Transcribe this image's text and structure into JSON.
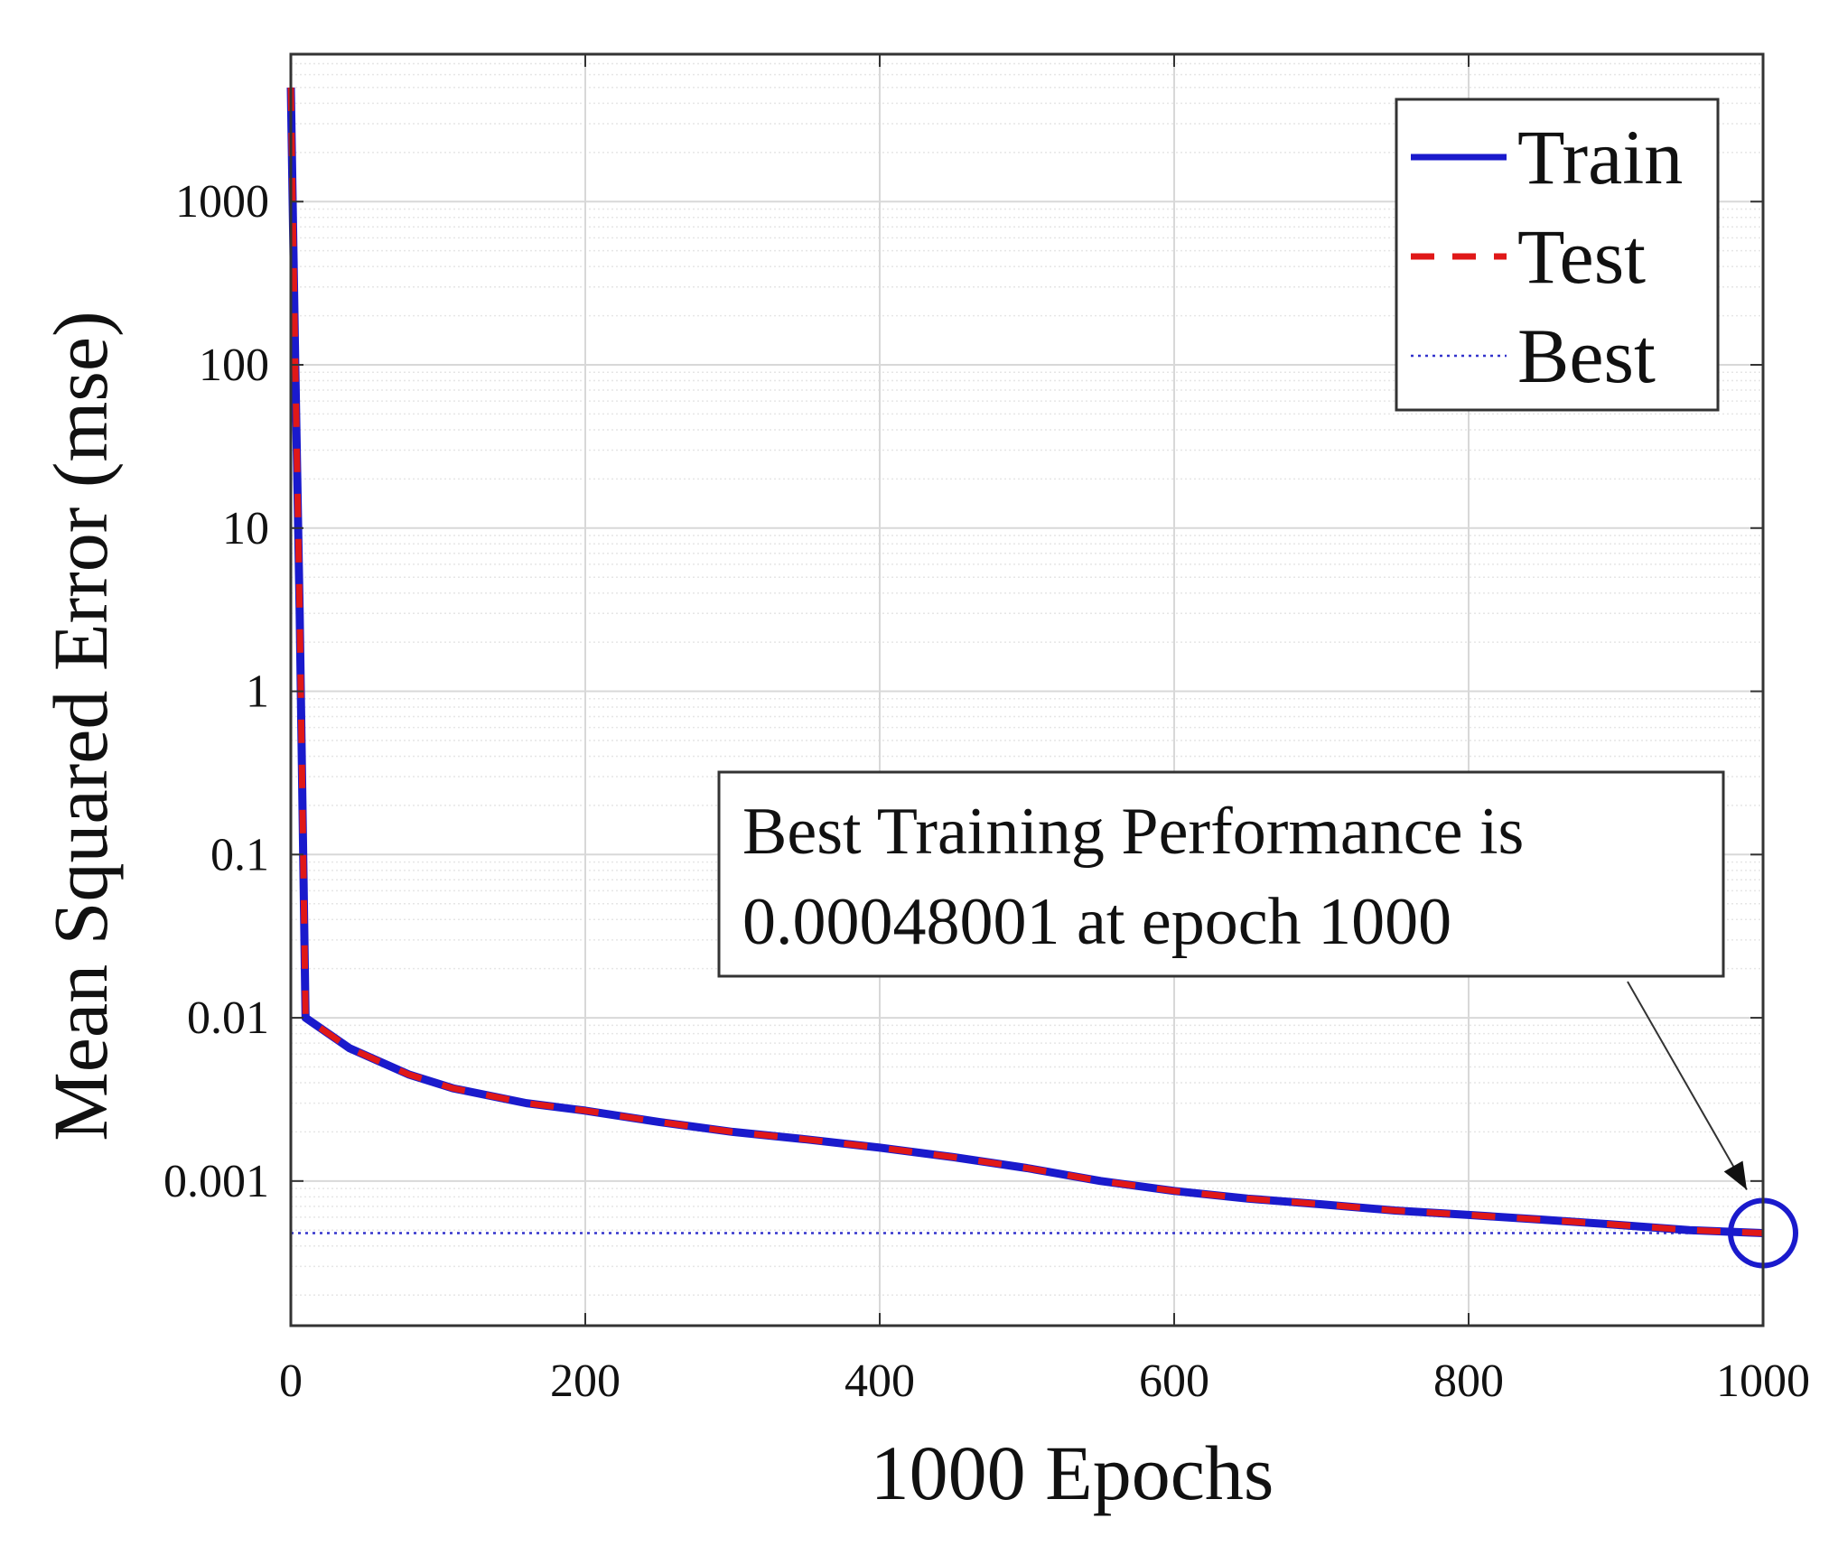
{
  "chart_data": {
    "type": "line",
    "xlabel": "1000 Epochs",
    "ylabel": "Mean Squared Error  (mse)",
    "xlim": [
      0,
      1000
    ],
    "ylim": [
      0.00013,
      8000
    ],
    "yscale": "log",
    "grid": true,
    "x_ticks": [
      0,
      200,
      400,
      600,
      800,
      1000
    ],
    "x_tick_labels": [
      "0",
      "200",
      "400",
      "600",
      "800",
      "1000"
    ],
    "y_ticks": [
      0.001,
      0.01,
      0.1,
      1,
      10,
      100,
      1000
    ],
    "y_tick_labels": [
      "0.001",
      "0.01",
      "0.1",
      "1",
      "10",
      "100",
      "1000"
    ],
    "legend_position": "top-right",
    "series": [
      {
        "name": "Train",
        "color": "#1a1acc",
        "style": "solid",
        "x": [
          0,
          3,
          6,
          10,
          40,
          80,
          110,
          160,
          200,
          250,
          300,
          350,
          400,
          450,
          500,
          550,
          600,
          650,
          700,
          750,
          800,
          850,
          900,
          950,
          1000
        ],
        "y": [
          5000,
          100,
          3,
          0.01,
          0.0065,
          0.0045,
          0.0037,
          0.003,
          0.0027,
          0.0023,
          0.002,
          0.0018,
          0.0016,
          0.0014,
          0.0012,
          0.001,
          0.00087,
          0.00078,
          0.00072,
          0.00066,
          0.00062,
          0.00058,
          0.00054,
          0.0005,
          0.00048
        ]
      },
      {
        "name": "Test",
        "color": "#e01818",
        "style": "dashed",
        "x": [
          0,
          3,
          6,
          10,
          40,
          80,
          110,
          160,
          200,
          250,
          300,
          350,
          400,
          450,
          500,
          550,
          600,
          650,
          700,
          750,
          800,
          850,
          900,
          950,
          1000
        ],
        "y": [
          5000,
          100,
          3,
          0.01,
          0.0065,
          0.0045,
          0.0037,
          0.003,
          0.0027,
          0.0023,
          0.002,
          0.0018,
          0.0016,
          0.0014,
          0.0012,
          0.001,
          0.00087,
          0.00078,
          0.00072,
          0.00066,
          0.00062,
          0.00058,
          0.00054,
          0.0005,
          0.00048
        ]
      },
      {
        "name": "Best",
        "color": "#3333cc",
        "style": "dotted",
        "y_value": 0.00048001
      }
    ],
    "best_marker": {
      "x": 1000,
      "y": 0.00048001,
      "color": "#1a1acc"
    },
    "annotation": {
      "line1": "Best Training Performance is",
      "line2": "0.00048001 at epoch 1000"
    }
  }
}
